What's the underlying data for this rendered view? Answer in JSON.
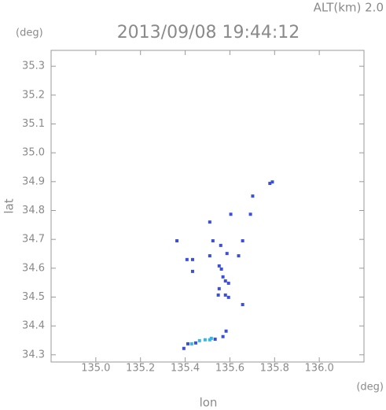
{
  "chart_data": {
    "type": "scatter",
    "title": "2013/09/08 19:44:12",
    "subtitle": "ALT(km) 2.0",
    "y_unit": "(deg)",
    "x_unit": "(deg)",
    "xlabel": "lon",
    "ylabel": "lat",
    "xlim": [
      134.8,
      136.2
    ],
    "ylim": [
      34.275,
      35.355
    ],
    "xticks": [
      {
        "value": 135,
        "label": "135.0"
      },
      135.2,
      135.4,
      135.6,
      135.8,
      {
        "value": 136,
        "label": "136.0"
      }
    ],
    "yticks": [
      34.3,
      34.4,
      34.5,
      34.6,
      34.7,
      34.8,
      34.9,
      {
        "value": 35,
        "label": "35.0"
      },
      35.1,
      35.2,
      35.3
    ],
    "series": [
      {
        "color": "#3a4fe0",
        "x": [
          135.779,
          135.79,
          135.702,
          135.604,
          135.692,
          135.51,
          135.363,
          135.524,
          135.559,
          135.657,
          135.408,
          135.433,
          135.51,
          135.587,
          135.639,
          135.552,
          135.562,
          135.433,
          135.569,
          135.58,
          135.594,
          135.552,
          135.548,
          135.58,
          135.594,
          135.657,
          135.583,
          135.394,
          135.412,
          135.447,
          135.534,
          135.569
        ],
        "y": [
          34.894,
          34.899,
          34.85,
          34.787,
          34.787,
          34.76,
          34.695,
          34.695,
          34.679,
          34.695,
          34.63,
          34.63,
          34.643,
          34.651,
          34.643,
          34.608,
          34.597,
          34.589,
          34.57,
          34.556,
          34.548,
          34.529,
          34.507,
          34.507,
          34.499,
          34.474,
          34.382,
          34.322,
          34.338,
          34.341,
          34.354,
          34.363
        ]
      },
      {
        "color": "#38b6e8",
        "x": [
          135.429,
          135.464,
          135.489,
          135.51,
          135.517
        ],
        "y": [
          34.338,
          34.349,
          34.352,
          34.352,
          34.357
        ]
      }
    ]
  }
}
